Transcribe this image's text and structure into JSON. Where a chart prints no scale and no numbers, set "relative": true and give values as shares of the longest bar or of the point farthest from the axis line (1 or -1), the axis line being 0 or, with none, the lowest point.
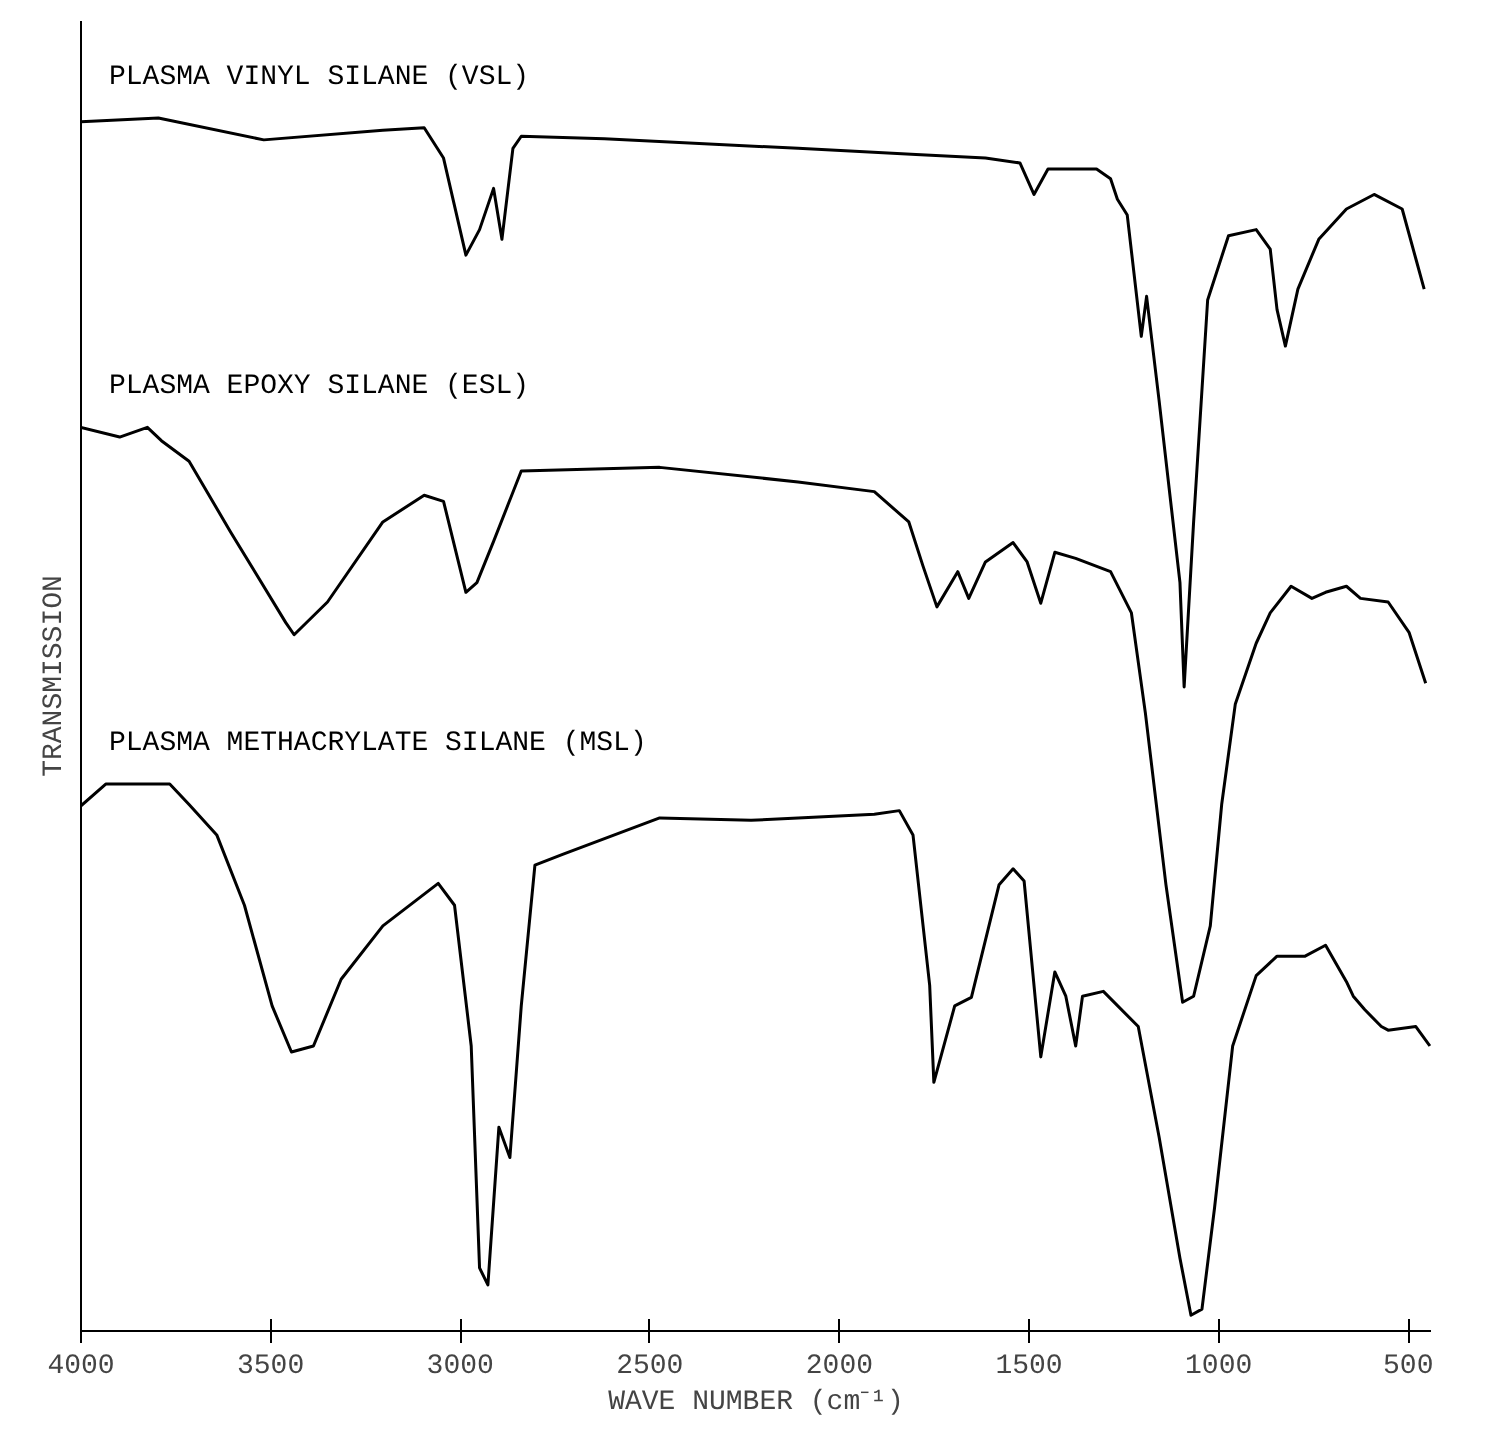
{
  "chart_data": {
    "type": "line",
    "relative": true,
    "xlabel": "WAVE NUMBER (cm⁻¹)",
    "ylabel": "TRANSMISSION",
    "xlim": [
      4000,
      440
    ],
    "xticks": [
      4000,
      3500,
      3000,
      2500,
      2000,
      1500,
      1000,
      500
    ],
    "grid": false,
    "series": [
      {
        "name": "PLASMA VINYL SILANE (VSL)",
        "color": "#000000",
        "x": [
          4000,
          3796,
          3518,
          3204,
          3095,
          3044,
          2985,
          2949,
          2912,
          2890,
          2861,
          2839,
          2620,
          2109,
          1798,
          1615,
          1524,
          1487,
          1450,
          1322,
          1285,
          1267,
          1241,
          1204,
          1190,
          1157,
          1102,
          1091,
          1066,
          1029,
          974,
          901,
          864,
          846,
          824,
          791,
          736,
          663,
          590,
          516,
          480,
          458
        ],
        "values": [
          0.997,
          1.0,
          0.982,
          0.99,
          0.992,
          0.967,
          0.887,
          0.908,
          0.942,
          0.9,
          0.975,
          0.985,
          0.983,
          0.975,
          0.97,
          0.967,
          0.963,
          0.937,
          0.958,
          0.958,
          0.95,
          0.933,
          0.92,
          0.82,
          0.853,
          0.767,
          0.617,
          0.531,
          0.667,
          0.85,
          0.903,
          0.908,
          0.892,
          0.842,
          0.812,
          0.859,
          0.9,
          0.925,
          0.937,
          0.925,
          0.884,
          0.859
        ]
      },
      {
        "name": "PLASMA EPOXY SILANE (ESL)",
        "color": "#000000",
        "x": [
          4000,
          3898,
          3825,
          3788,
          3715,
          3606,
          3460,
          3438,
          3350,
          3204,
          3095,
          3044,
          2985,
          2956,
          2912,
          2839,
          2474,
          2109,
          1908,
          1817,
          1780,
          1743,
          1688,
          1659,
          1615,
          1542,
          1505,
          1469,
          1432,
          1377,
          1285,
          1230,
          1193,
          1139,
          1095,
          1066,
          1022,
          992,
          956,
          901,
          864,
          809,
          754,
          718,
          663,
          626,
          553,
          498,
          454
        ],
        "values": [
          0.745,
          0.737,
          0.745,
          0.734,
          0.717,
          0.659,
          0.584,
          0.574,
          0.601,
          0.667,
          0.689,
          0.684,
          0.609,
          0.617,
          0.651,
          0.709,
          0.712,
          0.7,
          0.692,
          0.667,
          0.631,
          0.597,
          0.626,
          0.604,
          0.634,
          0.65,
          0.634,
          0.6,
          0.642,
          0.637,
          0.626,
          0.592,
          0.509,
          0.368,
          0.271,
          0.276,
          0.334,
          0.434,
          0.517,
          0.567,
          0.592,
          0.614,
          0.604,
          0.609,
          0.614,
          0.604,
          0.601,
          0.576,
          0.534
        ]
      },
      {
        "name": "PLASMA METHACRYLATE SILANE (MSL)",
        "color": "#000000",
        "x": [
          4000,
          3934,
          3766,
          3715,
          3642,
          3569,
          3496,
          3445,
          3387,
          3314,
          3204,
          3058,
          3015,
          2971,
          2949,
          2927,
          2898,
          2869,
          2839,
          2803,
          2730,
          2474,
          2233,
          2109,
          1908,
          1842,
          1806,
          1762,
          1751,
          1696,
          1652,
          1579,
          1542,
          1513,
          1469,
          1432,
          1403,
          1377,
          1359,
          1304,
          1212,
          1157,
          1102,
          1073,
          1044,
          1011,
          963,
          901,
          846,
          772,
          718,
          663,
          645,
          615,
          571,
          553,
          480,
          443
        ],
        "values": [
          0.433,
          0.451,
          0.451,
          0.434,
          0.409,
          0.351,
          0.268,
          0.23,
          0.235,
          0.29,
          0.334,
          0.369,
          0.351,
          0.235,
          0.052,
          0.038,
          0.168,
          0.143,
          0.268,
          0.384,
          0.393,
          0.423,
          0.421,
          0.423,
          0.426,
          0.429,
          0.409,
          0.285,
          0.205,
          0.268,
          0.275,
          0.368,
          0.381,
          0.371,
          0.226,
          0.296,
          0.276,
          0.235,
          0.276,
          0.28,
          0.251,
          0.16,
          0.06,
          0.013,
          0.018,
          0.101,
          0.235,
          0.293,
          0.309,
          0.309,
          0.318,
          0.288,
          0.276,
          0.265,
          0.251,
          0.248,
          0.251,
          0.235
        ]
      }
    ]
  }
}
